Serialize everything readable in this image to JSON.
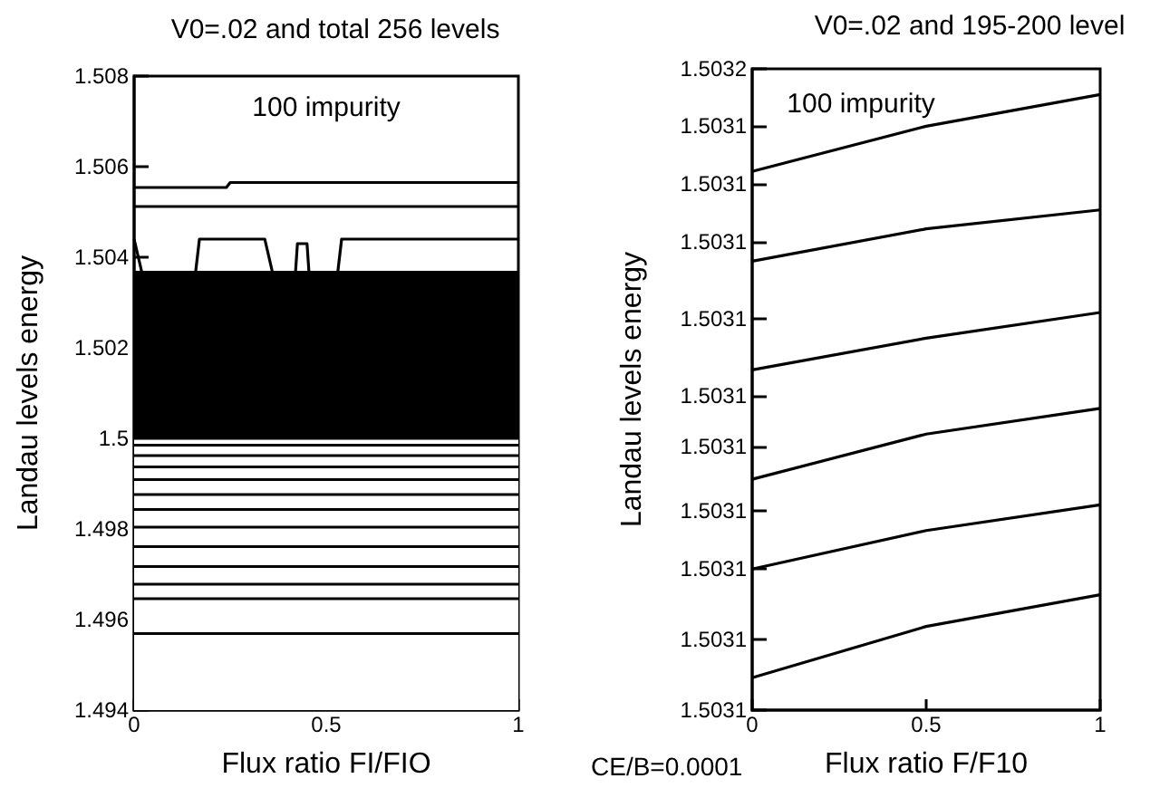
{
  "chart_data": [
    {
      "type": "line",
      "title": "V0=.02 and total 256 levels",
      "xlabel": "Flux ratio FI/FIO",
      "ylabel": "Landau levels energy",
      "annotations": [
        "100 impurity"
      ],
      "xlim": [
        0,
        1
      ],
      "xticks": [
        0,
        0.5,
        1
      ],
      "ylim": [
        1.494,
        1.508
      ],
      "yticks": [
        1.494,
        1.496,
        1.498,
        1.5,
        1.502,
        1.504,
        1.506,
        1.508
      ],
      "marker": "none",
      "line_style": "solid",
      "series": [
        {
          "color": "#000000",
          "x": [
            0,
            0.24,
            0.25,
            1
          ],
          "values": [
            1.50554,
            1.50554,
            1.50565,
            1.50565
          ]
        },
        {
          "color": "#000000",
          "x": [
            0,
            1
          ],
          "values": [
            1.50512,
            1.50512
          ]
        },
        {
          "color": "#000000",
          "x": [
            0,
            0.02,
            0.16,
            0.17,
            0.34,
            0.36,
            0.42,
            0.425,
            0.45,
            0.455,
            0.53,
            0.54,
            1
          ],
          "values": [
            1.5044,
            1.50367,
            1.50367,
            1.5044,
            1.5044,
            1.50367,
            1.50367,
            1.5043,
            1.5043,
            1.50367,
            1.50367,
            1.5044,
            1.5044
          ]
        },
        {
          "type": "area",
          "color": "#000000",
          "x": [
            0,
            1
          ],
          "values": [
            1.50367,
            1.50367
          ]
        },
        {
          "type": "area",
          "color": "#000000",
          "x": [
            0,
            1
          ],
          "values": [
            1.5,
            1.5
          ]
        },
        {
          "color": "#000000",
          "x": [
            0,
            1
          ],
          "values": [
            1.49985,
            1.49985
          ]
        },
        {
          "color": "#000000",
          "x": [
            0,
            1
          ],
          "values": [
            1.49962,
            1.49962
          ]
        },
        {
          "color": "#000000",
          "x": [
            0,
            1
          ],
          "values": [
            1.49937,
            1.49937
          ]
        },
        {
          "color": "#000000",
          "x": [
            0,
            1
          ],
          "values": [
            1.49909,
            1.49909
          ]
        },
        {
          "color": "#000000",
          "x": [
            0,
            1
          ],
          "values": [
            1.49876,
            1.49876
          ]
        },
        {
          "color": "#000000",
          "x": [
            0,
            1
          ],
          "values": [
            1.49843,
            1.49843
          ]
        },
        {
          "color": "#000000",
          "x": [
            0,
            1
          ],
          "values": [
            1.49804,
            1.49804
          ]
        },
        {
          "color": "#000000",
          "x": [
            0,
            1
          ],
          "values": [
            1.49761,
            1.49761
          ]
        },
        {
          "color": "#000000",
          "x": [
            0,
            1
          ],
          "values": [
            1.49717,
            1.49717
          ]
        },
        {
          "color": "#000000",
          "x": [
            0,
            1
          ],
          "values": [
            1.49678,
            1.49678
          ]
        },
        {
          "color": "#000000",
          "x": [
            0,
            1
          ],
          "values": [
            1.49646,
            1.49646
          ]
        },
        {
          "color": "#000000",
          "x": [
            0,
            1
          ],
          "values": [
            1.49569,
            1.49569
          ]
        }
      ]
    },
    {
      "type": "line",
      "title": "V0=.02 and 195-200 level",
      "xlabel": "Flux ratio F/F10",
      "ylabel": "Landau levels energy",
      "annotations": [
        "100 impurity",
        "CE/B=0.0001"
      ],
      "xlim": [
        0,
        1
      ],
      "xticks": [
        0,
        0.5,
        1
      ],
      "ylim": [
        1.503052,
        1.503157
      ],
      "yticks": [
        {
          "value": 1.503052,
          "label": "1.5031"
        },
        {
          "value": 1.5030636,
          "label": "1.5031"
        },
        {
          "value": 1.5030751,
          "label": "1.5031"
        },
        {
          "value": 1.5030846,
          "label": "1.5031"
        },
        {
          "value": 1.5030951,
          "label": "1.5031"
        },
        {
          "value": 1.5031035,
          "label": "1.5031"
        },
        {
          "value": 1.5031161,
          "label": "1.5031"
        },
        {
          "value": 1.5031287,
          "label": "1.5031"
        },
        {
          "value": 1.5031381,
          "label": "1.5031"
        },
        {
          "value": 1.5031476,
          "label": "1.5031"
        },
        {
          "value": 1.503157,
          "label": "1.5032"
        }
      ],
      "marker": "none",
      "line_style": "solid",
      "series": [
        {
          "color": "#000000",
          "x": [
            0,
            0.5,
            1
          ],
          "values": [
            1.5031402,
            1.5031476,
            1.5031528
          ]
        },
        {
          "color": "#000000",
          "x": [
            0,
            0.5,
            1
          ],
          "values": [
            1.5031255,
            1.5031308,
            1.5031339
          ]
        },
        {
          "color": "#000000",
          "x": [
            0,
            0.5,
            1
          ],
          "values": [
            1.5031077,
            1.5031129,
            1.5031171
          ]
        },
        {
          "color": "#000000",
          "x": [
            0,
            0.5,
            1
          ],
          "values": [
            1.5030898,
            1.5030972,
            1.5031014
          ]
        },
        {
          "color": "#000000",
          "x": [
            0,
            0.5,
            1
          ],
          "values": [
            1.5030751,
            1.5030814,
            1.5030856
          ]
        },
        {
          "color": "#000000",
          "x": [
            0,
            0.5,
            1
          ],
          "values": [
            1.5030573,
            1.5030657,
            1.5030709
          ]
        }
      ]
    }
  ]
}
